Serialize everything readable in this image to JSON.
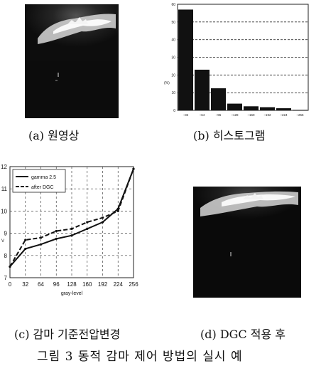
{
  "panels": {
    "a": {
      "caption": "(a) 원영상"
    },
    "b": {
      "caption": "(b) 히스토그램"
    },
    "c": {
      "caption": "(c) 감마 기준전압변경"
    },
    "d": {
      "caption": "(d) DGC 적용 후"
    }
  },
  "figure_caption": "그림 3 동적 감마 제어 방법의 실시 예",
  "chart_data": [
    {
      "id": "histogram",
      "type": "bar",
      "categories": [
        "~32",
        "~64",
        "~96",
        "~128",
        "~160",
        "~192",
        "~224",
        "~255"
      ],
      "values": [
        57,
        23,
        12.5,
        3.8,
        2.3,
        1.8,
        1.2,
        0.3
      ],
      "ylim": [
        0,
        60
      ],
      "yticks": [
        0,
        10,
        20,
        30,
        40,
        50,
        60
      ],
      "ylabel": "(%)",
      "grid": "horizontal-dashed"
    },
    {
      "id": "gamma-reference",
      "type": "line",
      "x": [
        0,
        32,
        64,
        96,
        128,
        160,
        192,
        224,
        256
      ],
      "series": [
        {
          "name": "gamma 2.5",
          "style": "solid",
          "values": [
            7.5,
            8.3,
            8.5,
            8.75,
            8.9,
            9.2,
            9.5,
            10.1,
            11.9
          ]
        },
        {
          "name": "after DGC",
          "style": "dashed",
          "values": [
            7.5,
            8.7,
            8.8,
            9.1,
            9.2,
            9.5,
            9.7,
            10.0,
            11.9
          ]
        }
      ],
      "xlim": [
        0,
        256
      ],
      "ylim": [
        7,
        12
      ],
      "yticks": [
        7,
        8,
        9,
        10,
        11,
        12
      ],
      "xlabel": "gray-level",
      "ylabel": "V",
      "legend": "top-left",
      "grid": "dashed"
    }
  ]
}
